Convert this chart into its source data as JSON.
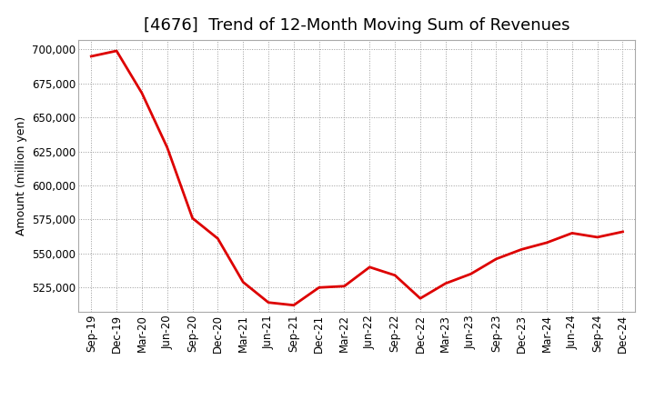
{
  "title": "[4676]  Trend of 12-Month Moving Sum of Revenues",
  "ylabel": "Amount (million yen)",
  "line_color": "#dd0000",
  "background_color": "#ffffff",
  "plot_bg_color": "#ffffff",
  "grid_color": "#999999",
  "x_labels": [
    "Sep-19",
    "Dec-19",
    "Mar-20",
    "Jun-20",
    "Sep-20",
    "Dec-20",
    "Mar-21",
    "Jun-21",
    "Sep-21",
    "Dec-21",
    "Mar-22",
    "Jun-22",
    "Sep-22",
    "Dec-22",
    "Mar-23",
    "Jun-23",
    "Sep-23",
    "Dec-23",
    "Mar-24",
    "Jun-24",
    "Sep-24",
    "Dec-24"
  ],
  "values": [
    695000,
    699000,
    668000,
    628000,
    576000,
    561000,
    529000,
    514000,
    512000,
    525000,
    526000,
    540000,
    534000,
    517000,
    528000,
    535000,
    546000,
    553000,
    558000,
    565000,
    562000,
    566000
  ],
  "ylim_min": 507000,
  "ylim_max": 707000,
  "yticks": [
    525000,
    550000,
    575000,
    600000,
    625000,
    650000,
    675000,
    700000
  ],
  "line_width": 2.0,
  "title_fontsize": 13,
  "axis_fontsize": 9,
  "tick_fontsize": 8.5
}
